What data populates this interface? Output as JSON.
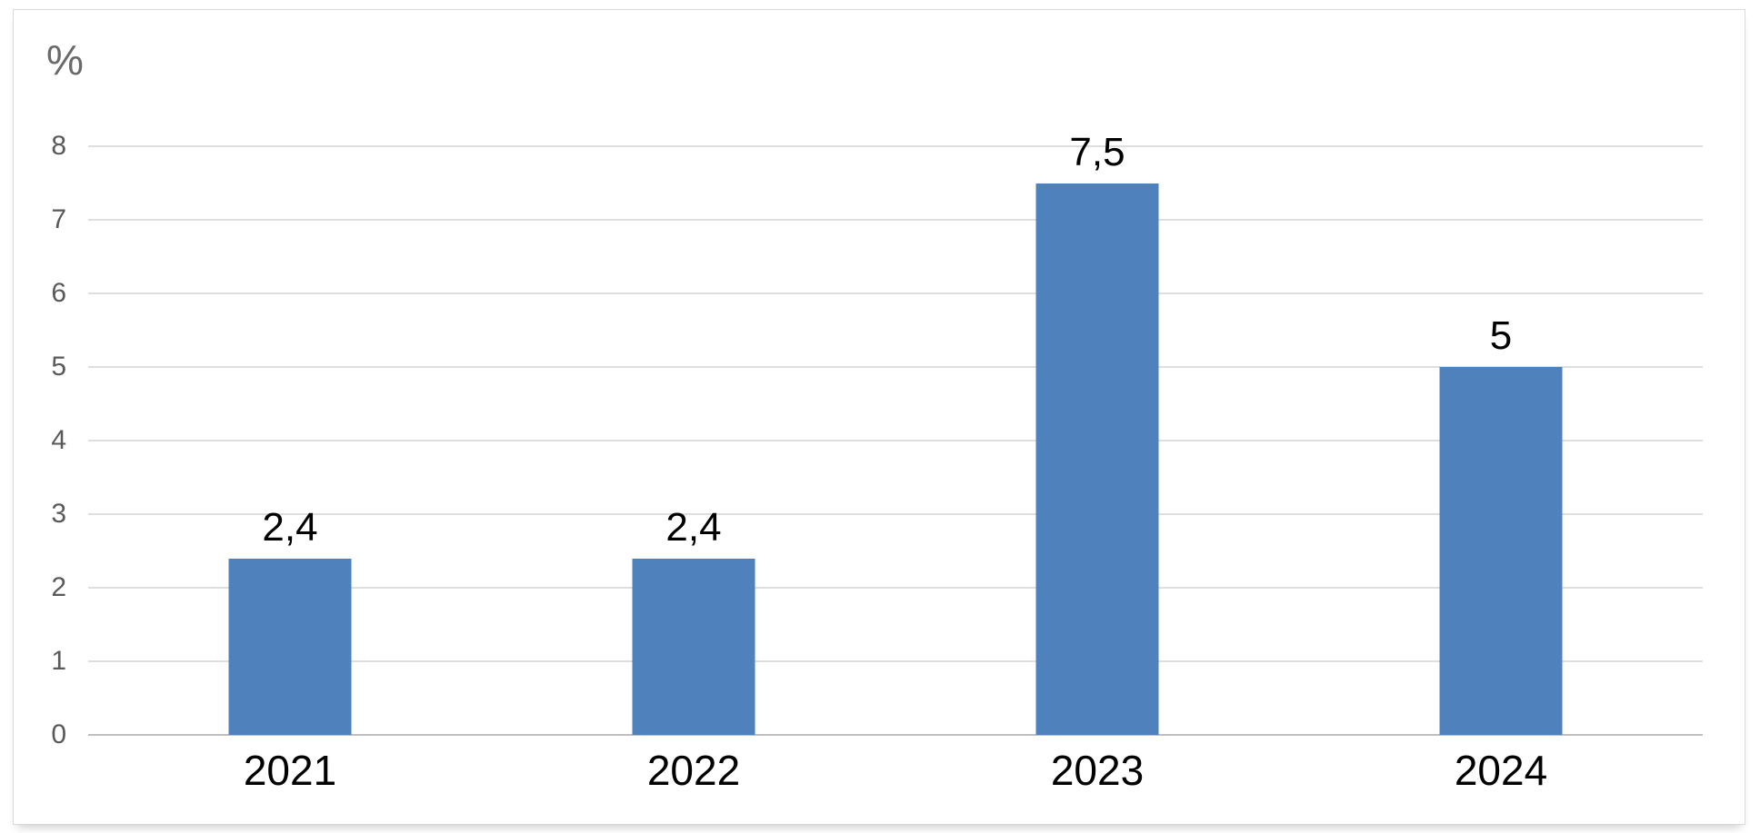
{
  "chart_data": {
    "type": "bar",
    "categories": [
      "2021",
      "2022",
      "2023",
      "2024"
    ],
    "values": [
      2.4,
      2.4,
      7.5,
      5
    ],
    "data_labels": [
      "2,4",
      "2,4",
      "7,5",
      "5"
    ],
    "title": "",
    "xlabel": "",
    "ylabel": "%",
    "ylim": [
      0,
      8
    ],
    "yticks": [
      0,
      1,
      2,
      3,
      4,
      5,
      6,
      7,
      8
    ],
    "grid": true,
    "legend": false,
    "colors": {
      "bar": "#4f81bd",
      "gridline": "#dedede",
      "axis_line": "#bfbfbf",
      "tick_label": "#595959",
      "data_label": "#000000",
      "category_label": "#000000",
      "frame_border": "#d9d9d9",
      "background": "#ffffff"
    }
  }
}
